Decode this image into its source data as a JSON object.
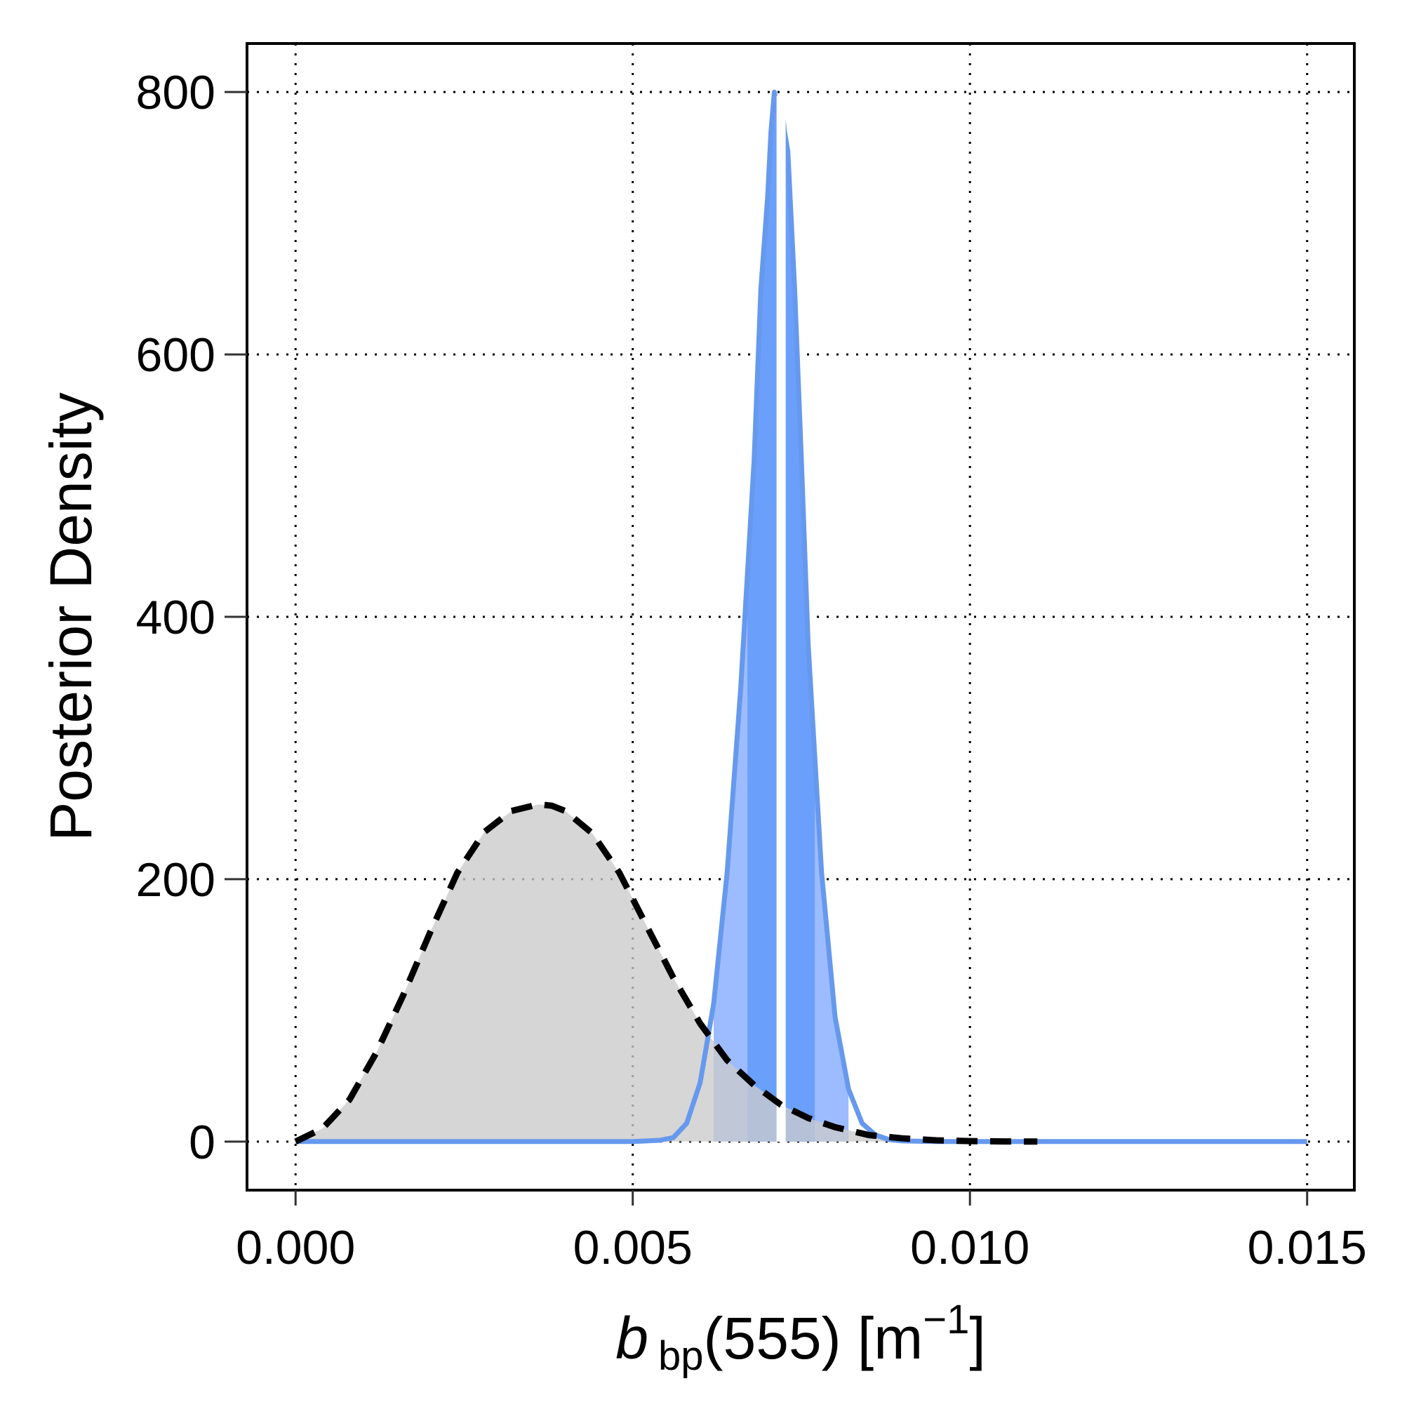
{
  "chart_data": {
    "type": "area",
    "xlabel": {
      "main": "b",
      "subscript": "bp",
      "rest": "(555) [m",
      "superscript": "−1",
      "close": "]"
    },
    "ylabel": "Posterior Density",
    "xlim": [
      -0.00072,
      0.0157
    ],
    "ylim": [
      -37,
      837
    ],
    "xticks": [
      0.0,
      0.005,
      0.01,
      0.015
    ],
    "xtick_labels": [
      "0.000",
      "0.005",
      "0.010",
      "0.015"
    ],
    "yticks": [
      0,
      200,
      400,
      600,
      800
    ],
    "ytick_labels": [
      "0",
      "200",
      "400",
      "600",
      "800"
    ],
    "grid": true,
    "grid_style": "dotted",
    "colors": {
      "prior_fill": "#cbcbcb",
      "prior_line": "#000000",
      "posterior_line": "#6699ee",
      "band_outer": "#9dbcff",
      "band_middle": "#6b9ffc",
      "median_line": "#ffffff"
    },
    "series": [
      {
        "role": "prior",
        "style": "dashed line with gray fill",
        "x": [
          0.0,
          0.0004,
          0.0008,
          0.0012,
          0.0016,
          0.002,
          0.0024,
          0.0028,
          0.0032,
          0.0036,
          0.0038,
          0.004,
          0.0044,
          0.0048,
          0.0052,
          0.0056,
          0.006,
          0.0064,
          0.0068,
          0.0072,
          0.0076,
          0.008,
          0.0085,
          0.009,
          0.0095,
          0.01,
          0.0105,
          0.011
        ],
        "y": [
          0,
          10,
          32,
          68,
          112,
          160,
          205,
          236,
          252,
          257,
          256,
          252,
          235,
          205,
          165,
          125,
          90,
          62,
          43,
          28,
          18,
          11,
          5,
          2.5,
          1,
          0.4,
          0.1,
          0
        ]
      },
      {
        "role": "posterior",
        "style": "solid blue outline",
        "x": [
          0.0,
          0.005,
          0.0054,
          0.0056,
          0.0058,
          0.006,
          0.0062,
          0.0064,
          0.0066,
          0.0068,
          0.0069,
          0.007,
          0.00705,
          0.0071,
          0.00715,
          0.0072,
          0.00725,
          0.0073,
          0.0074,
          0.0075,
          0.0076,
          0.0078,
          0.008,
          0.0082,
          0.0084,
          0.0086,
          0.0088,
          0.009,
          0.0095,
          0.01,
          0.015
        ],
        "y": [
          0,
          0,
          1,
          3,
          14,
          45,
          105,
          205,
          345,
          520,
          650,
          720,
          770,
          800,
          785,
          795,
          770,
          755,
          650,
          520,
          380,
          205,
          95,
          40,
          14,
          5,
          1.5,
          0.5,
          0,
          0,
          0
        ]
      }
    ],
    "posterior_bands": {
      "outer": [
        0.0062,
        0.0082
      ],
      "middle": [
        0.0067,
        0.0077
      ],
      "median": 0.0072
    }
  }
}
